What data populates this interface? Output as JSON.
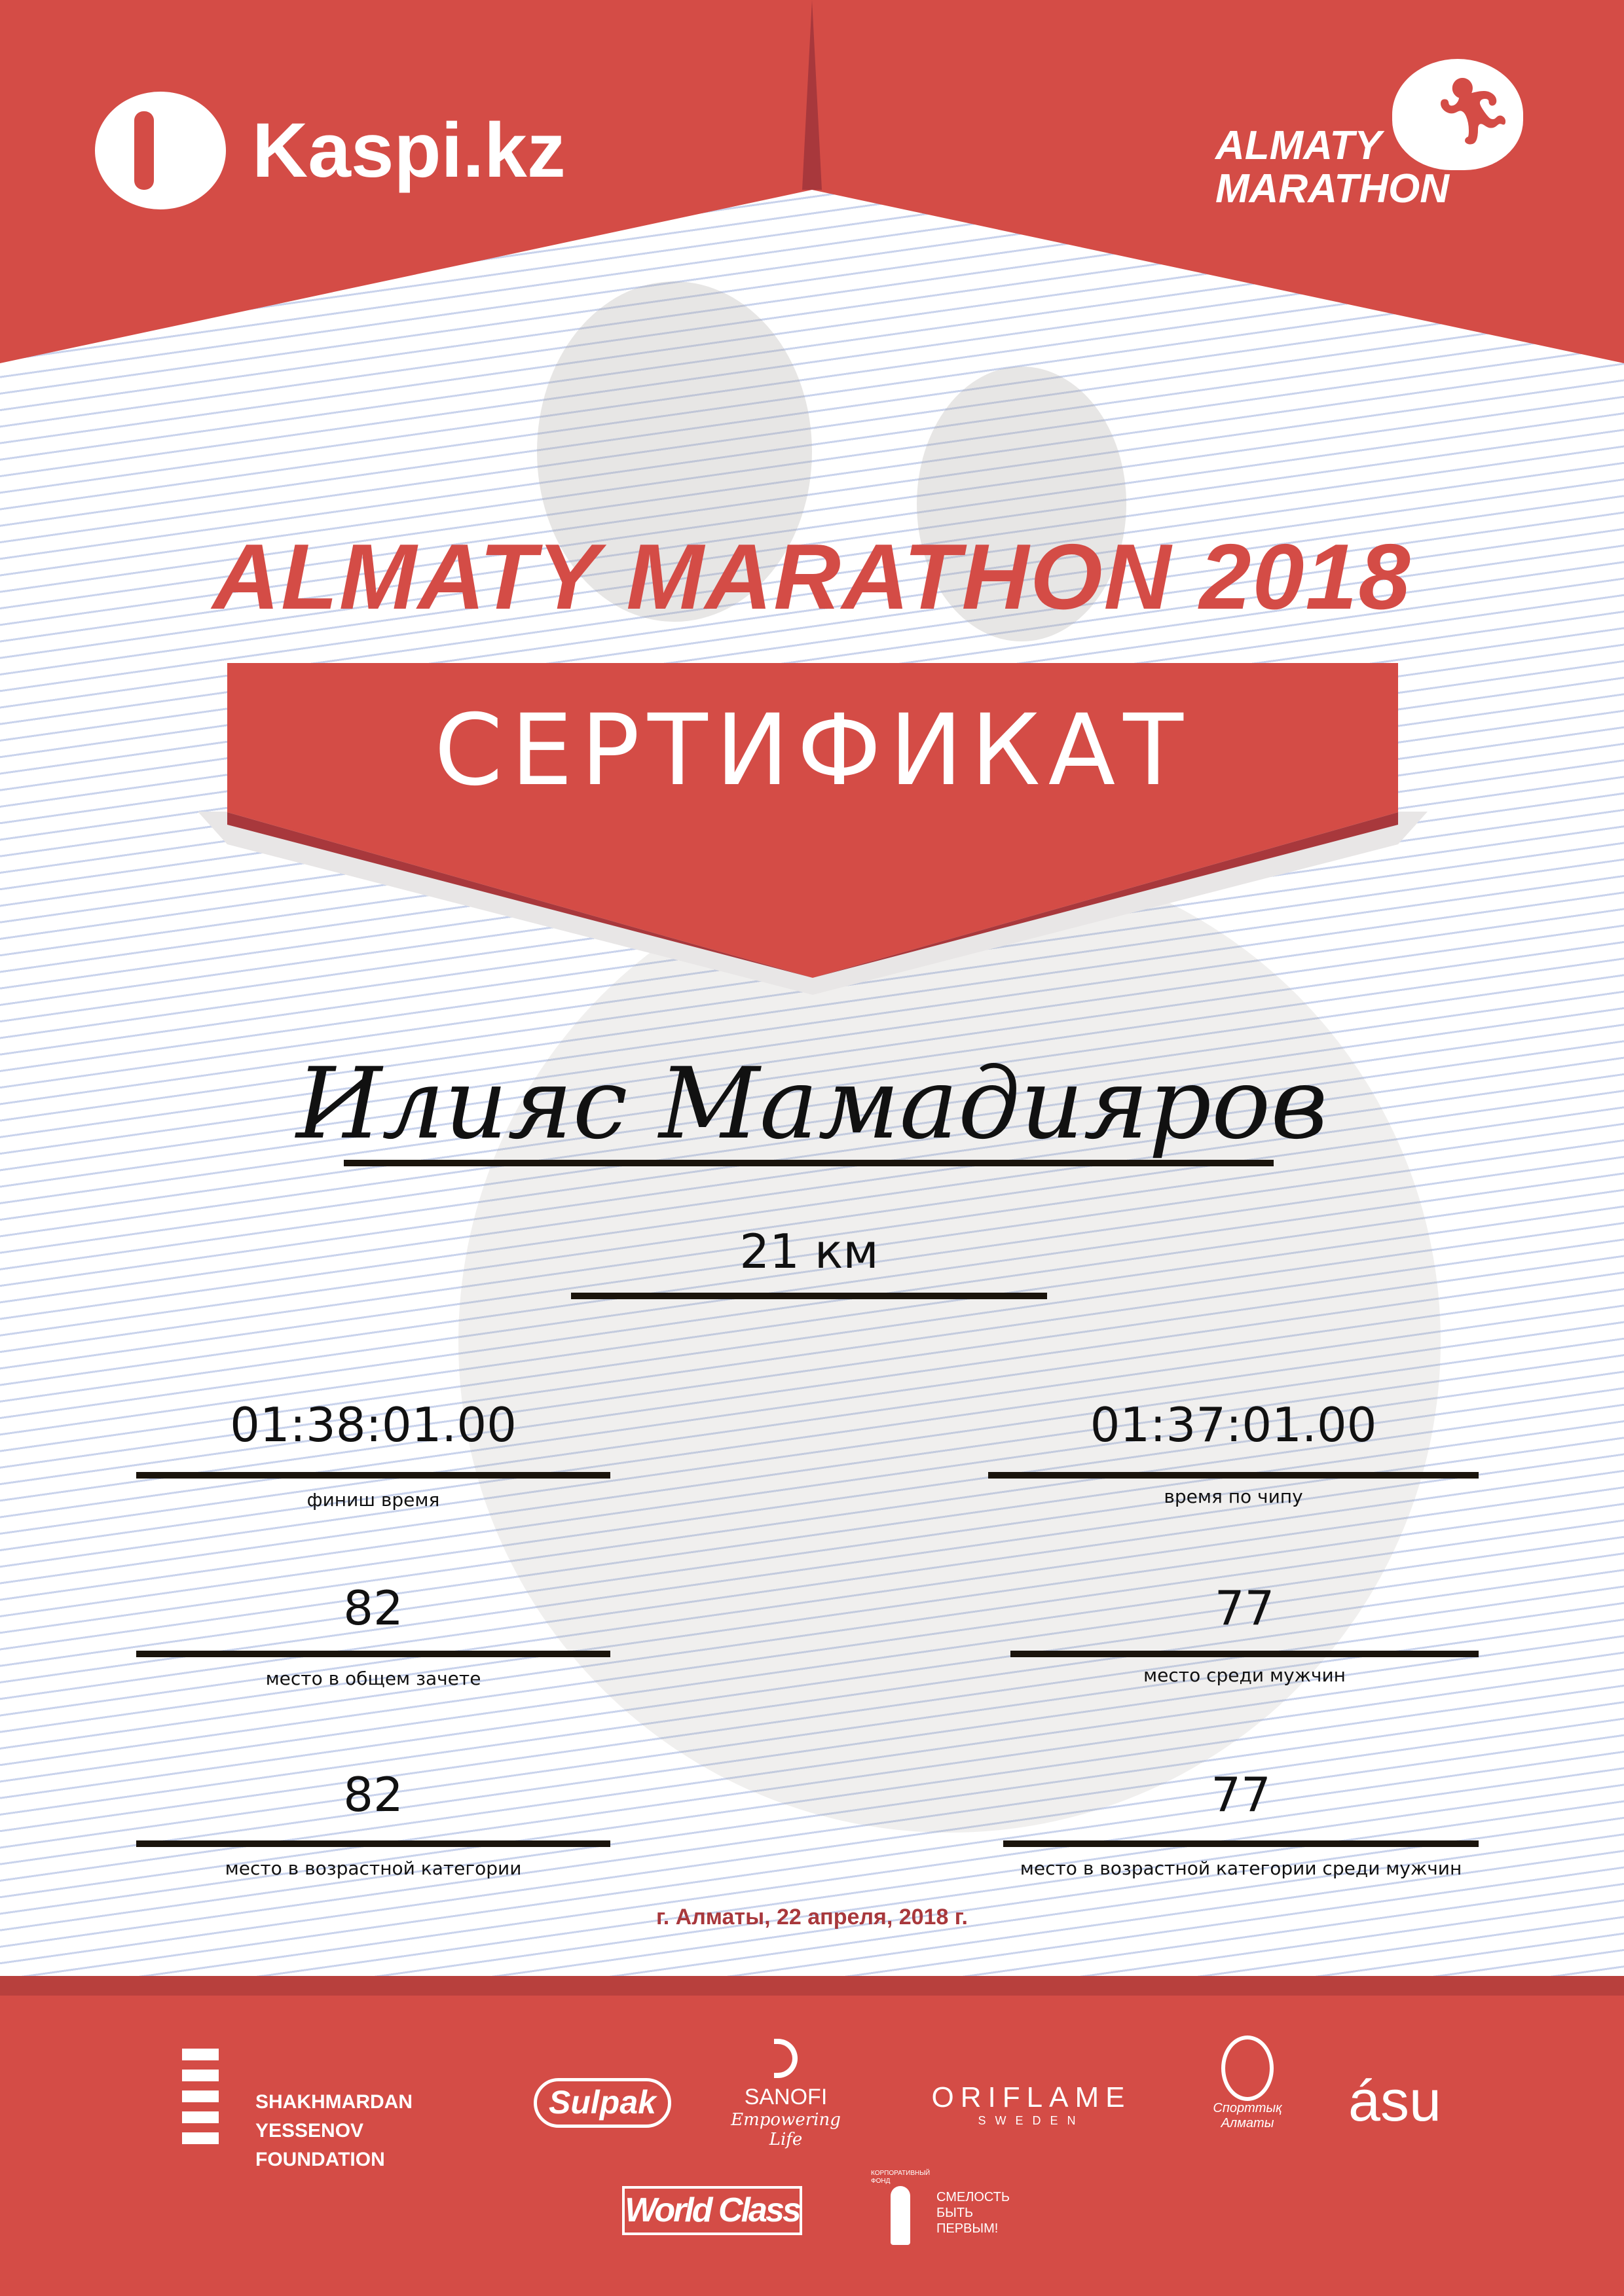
{
  "colors": {
    "brand_red": "#d44c46",
    "date_red": "#a8383c",
    "line": "#1a140c"
  },
  "header": {
    "kaspi_logo": "Kaspi.kz",
    "marathon_logo": [
      "ALMATY",
      "MARATHON"
    ]
  },
  "title": "ALMATY MARATHON 2018",
  "certificate_label": "СЕРТИФИКАТ",
  "participant_name": "Илияс Мамадияров",
  "distance": "21 км",
  "results": {
    "finish_time": {
      "value": "01:38:01.00",
      "label": "финиш время"
    },
    "chip_time": {
      "value": "01:37:01.00",
      "label": "время по чипу"
    },
    "overall_place": {
      "value": "82",
      "label": "место в общем зачете"
    },
    "gender_place": {
      "value": "77",
      "label": "место среди мужчин"
    },
    "age_place": {
      "value": "82",
      "label": "место в возрастной категории"
    },
    "age_gender_place": {
      "value": "77",
      "label": "место в возрастной категории среди мужчин"
    }
  },
  "date_line": "г. Алматы, 22 апреля, 2018 г.",
  "sponsors": {
    "yessenov": [
      "SHAKHMARDAN YESSENOV",
      "FOUNDATION"
    ],
    "sulpak": "Sulpak",
    "sanofi": [
      "SANOFI",
      "Empowering Life"
    ],
    "oriflame": [
      "ORIFLAME",
      "SWEDEN"
    ],
    "sport_almaty": [
      "Спорттық",
      "Алматы"
    ],
    "asu": "ásu",
    "worldclass": "World Class",
    "fund": [
      "КОРПОРАТИВНЫЙ ФОНД",
      "СМЕЛОСТЬ",
      "БЫТЬ",
      "ПЕРВЫМ!"
    ]
  }
}
